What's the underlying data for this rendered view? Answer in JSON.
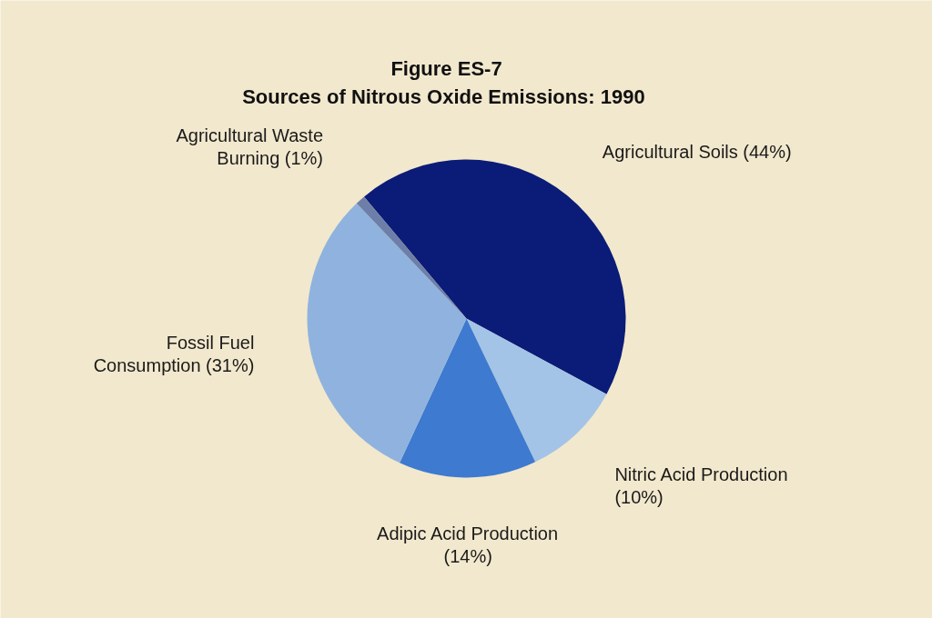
{
  "chart_data": {
    "type": "pie",
    "title": "Figure ES-7",
    "subtitle": "Sources of Nitrous Oxide Emissions:  1990",
    "categories": [
      "Agricultural Soils",
      "Nitric Acid Production",
      "Adipic Acid Production",
      "Fossil Fuel Consumption",
      "Agricultural Waste Burning"
    ],
    "values": [
      44,
      10,
      14,
      31,
      1
    ],
    "colors": [
      "#0b1b78",
      "#a3c4e6",
      "#3d7ad0",
      "#8fb3de",
      "#6d7fa8"
    ],
    "value_labels": [
      "(44%)",
      "(10%)",
      "(14%)",
      "(31%)",
      "(1%)"
    ]
  }
}
